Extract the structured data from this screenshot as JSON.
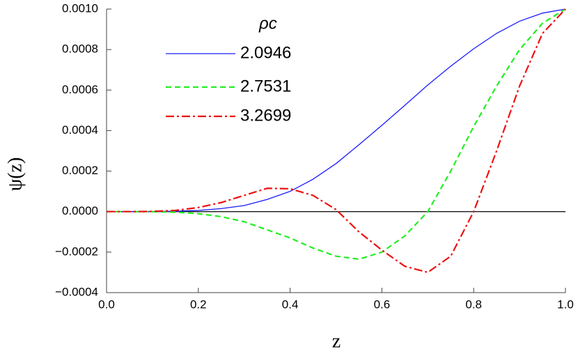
{
  "chart_data": {
    "type": "line",
    "xlabel": "z",
    "ylabel": "ψ(z)",
    "legend_title": "ρc",
    "x": [
      0,
      0.05,
      0.1,
      0.15,
      0.2,
      0.25,
      0.3,
      0.35,
      0.4,
      0.45,
      0.5,
      0.55,
      0.6,
      0.65,
      0.7,
      0.75,
      0.8,
      0.85,
      0.9,
      0.95,
      1
    ],
    "series": [
      {
        "name": "2.0946",
        "color": "#1a1aff",
        "style": "solid",
        "values": [
          0,
          0,
          5e-07,
          2e-06,
          6e-06,
          1.5e-05,
          3e-05,
          6e-05,
          0.0001,
          0.00016,
          0.000237,
          0.00033,
          0.000426,
          0.000525,
          0.000625,
          0.000718,
          0.000804,
          0.00088,
          0.00094,
          0.00098,
          0.001
        ]
      },
      {
        "name": "2.7531",
        "color": "#22ee22",
        "style": "dashed",
        "values": [
          0,
          0,
          -5e-07,
          -3e-06,
          -1e-05,
          -2.5e-05,
          -5e-05,
          -9e-05,
          -0.00013,
          -0.00018,
          -0.00022,
          -0.000235,
          -0.0002,
          -0.00012,
          0,
          0.0002,
          0.00042,
          0.00062,
          0.0008,
          0.00093,
          0.001
        ]
      },
      {
        "name": "3.2699",
        "color": "#ee1111",
        "style": "dashdot",
        "values": [
          0,
          0,
          1e-06,
          6e-06,
          2e-05,
          4.5e-05,
          8e-05,
          0.000115,
          0.000113,
          8e-05,
          1e-05,
          -0.0001,
          -0.00019,
          -0.00027,
          -0.0003,
          -0.00022,
          0,
          0.0003,
          0.00062,
          0.00088,
          0.001
        ]
      }
    ],
    "xlim": [
      0,
      1
    ],
    "xticks": [
      {
        "value": 0,
        "label": "0.0"
      },
      0.2,
      0.4,
      0.6,
      0.8,
      {
        "value": 1,
        "label": "1.0"
      }
    ],
    "ylim": [
      -0.0004,
      0.001
    ],
    "yticks": [
      {
        "value": -0.0004,
        "label": "−0.0004"
      },
      {
        "value": -0.0002,
        "label": "−0.0002"
      },
      {
        "value": 0,
        "label": "0.0000"
      },
      {
        "value": 0.0002,
        "label": "0.0002"
      },
      {
        "value": 0.0004,
        "label": "0.0004"
      },
      {
        "value": 0.0006,
        "label": "0.0006"
      },
      {
        "value": 0.0008,
        "label": "0.0008"
      },
      {
        "value": 0.001,
        "label": "0.0010"
      }
    ]
  }
}
